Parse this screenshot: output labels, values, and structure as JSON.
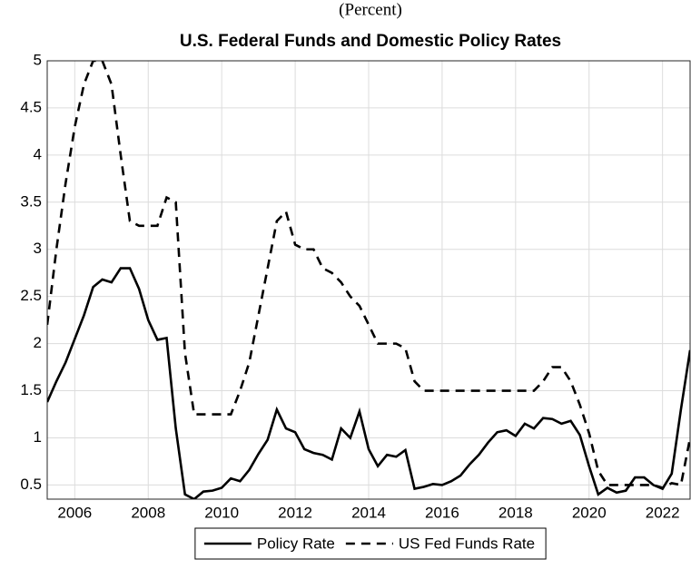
{
  "chart_data": {
    "type": "line",
    "subtitle": "(Percent)",
    "title": "U.S. Federal Funds and Domestic Policy Rates",
    "x": [
      2005.25,
      2005.5,
      2005.75,
      2006,
      2006.25,
      2006.5,
      2006.75,
      2007,
      2007.25,
      2007.5,
      2007.75,
      2008,
      2008.25,
      2008.5,
      2008.75,
      2009,
      2009.25,
      2009.5,
      2009.75,
      2010,
      2010.25,
      2010.5,
      2010.75,
      2011,
      2011.25,
      2011.5,
      2011.75,
      2012,
      2012.25,
      2012.5,
      2012.75,
      2013,
      2013.25,
      2013.5,
      2013.75,
      2014,
      2014.25,
      2014.5,
      2014.75,
      2015,
      2015.25,
      2015.5,
      2015.75,
      2016,
      2016.25,
      2016.5,
      2016.75,
      2017,
      2017.25,
      2017.5,
      2017.75,
      2018,
      2018.25,
      2018.5,
      2018.75,
      2019,
      2019.25,
      2019.5,
      2019.75,
      2020,
      2020.25,
      2020.5,
      2020.75,
      2021,
      2021.25,
      2021.5,
      2021.75,
      2022,
      2022.25,
      2022.5,
      2022.75
    ],
    "series": [
      {
        "name": "Policy Rate",
        "color": "#000000",
        "dash": "solid",
        "values": [
          1.38,
          1.6,
          1.8,
          2.05,
          2.3,
          2.6,
          2.68,
          2.65,
          2.8,
          2.8,
          2.58,
          2.25,
          2.04,
          2.06,
          1.1,
          0.4,
          0.35,
          0.43,
          0.44,
          0.47,
          0.57,
          0.54,
          0.66,
          0.83,
          0.98,
          1.3,
          1.1,
          1.06,
          0.88,
          0.84,
          0.82,
          0.77,
          1.1,
          1.0,
          1.28,
          0.88,
          0.7,
          0.82,
          0.8,
          0.87,
          0.46,
          0.48,
          0.51,
          0.5,
          0.54,
          0.6,
          0.72,
          0.82,
          0.95,
          1.06,
          1.08,
          1.02,
          1.15,
          1.1,
          1.21,
          1.2,
          1.15,
          1.18,
          1.03,
          0.7,
          0.4,
          0.47,
          0.42,
          0.44,
          0.58,
          0.58,
          0.5,
          0.46,
          0.62,
          1.3,
          1.93
        ]
      },
      {
        "name": "US Fed Funds Rate",
        "color": "#000000",
        "dash": "dashed",
        "values": [
          2.2,
          3.0,
          3.7,
          4.3,
          4.75,
          5.0,
          5.0,
          4.75,
          4.0,
          3.3,
          3.25,
          3.25,
          3.25,
          3.55,
          3.5,
          1.9,
          1.25,
          1.25,
          1.25,
          1.25,
          1.25,
          1.5,
          1.8,
          2.3,
          2.8,
          3.3,
          3.4,
          3.05,
          3.0,
          3.0,
          2.8,
          2.75,
          2.65,
          2.5,
          2.4,
          2.2,
          2.0,
          2.0,
          2.0,
          1.95,
          1.6,
          1.5,
          1.5,
          1.5,
          1.5,
          1.5,
          1.5,
          1.5,
          1.5,
          1.5,
          1.5,
          1.5,
          1.5,
          1.5,
          1.6,
          1.75,
          1.75,
          1.6,
          1.35,
          1.05,
          0.65,
          0.5,
          0.5,
          0.5,
          0.5,
          0.5,
          0.5,
          0.47,
          0.52,
          0.5,
          1.0
        ]
      }
    ],
    "xlim": [
      2005.25,
      2022.75
    ],
    "xticks": [
      2006,
      2008,
      2010,
      2012,
      2014,
      2016,
      2018,
      2020,
      2022
    ],
    "ylim": [
      0.35,
      5
    ],
    "yticks": [
      0.5,
      1,
      1.5,
      2,
      2.5,
      3,
      3.5,
      4,
      4.5,
      5
    ],
    "grid": true,
    "legend": "bottom"
  }
}
